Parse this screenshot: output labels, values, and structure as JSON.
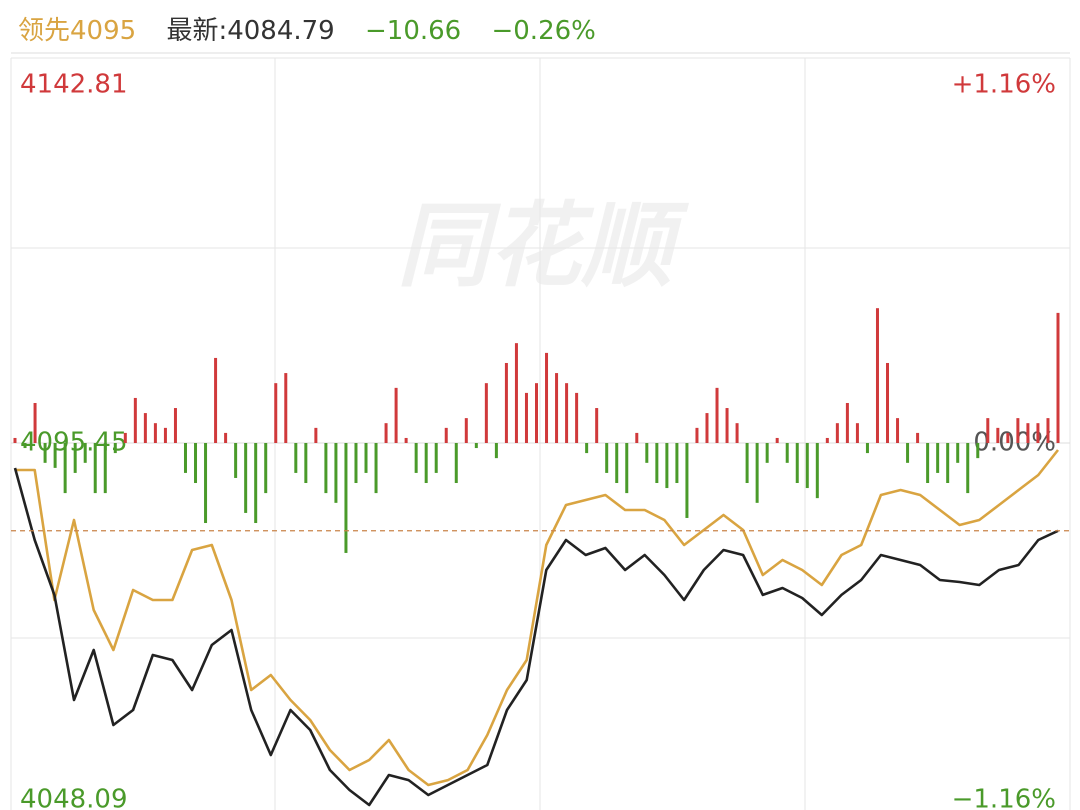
{
  "header": {
    "name": "领先4095",
    "latest_label": "最新:",
    "latest": 4084.79,
    "change": "−10.66",
    "change_pct": "−0.26%"
  },
  "watermark": "同花顺",
  "chart_data": {
    "type": "line",
    "ylim": [
      4048.09,
      4142.81
    ],
    "yticks": [
      4048.09,
      4095.45,
      4142.81
    ],
    "y2lim": [
      -1.16,
      1.16
    ],
    "y2ticks": [
      {
        "value": -1.16,
        "label": "−1.16%"
      },
      {
        "value": 0,
        "label": "0.00%"
      },
      {
        "value": 1.16,
        "label": "+1.16%"
      }
    ],
    "up_color": "#d0393b",
    "down_color": "#4a9a2a",
    "flat_color": "#8a8a8a",
    "series": [
      {
        "type": "bar",
        "axis": "y2",
        "values": [
          0.015,
          -0.015,
          0.119,
          -0.059,
          -0.074,
          -0.149,
          -0.089,
          -0.059,
          -0.149,
          -0.149,
          -0.03,
          0.03,
          0.134,
          0.089,
          0.059,
          0.045,
          0.104,
          -0.089,
          -0.119,
          -0.238,
          0.253,
          0.03,
          -0.104,
          -0.208,
          -0.238,
          -0.149,
          0.178,
          0.208,
          -0.089,
          -0.119,
          0.045,
          -0.149,
          -0.178,
          -0.327,
          -0.119,
          -0.089,
          -0.149,
          0.059,
          0.164,
          0.015,
          -0.089,
          -0.119,
          -0.089,
          0.045,
          -0.119,
          0.074,
          -0.015,
          0.178,
          -0.045,
          0.238,
          0.297,
          0.149,
          0.178,
          0.268,
          0.208,
          0.178,
          0.149,
          -0.03,
          0.104,
          -0.089,
          -0.119,
          -0.149,
          0.03,
          -0.059,
          -0.119,
          -0.134,
          -0.119,
          -0.223,
          0.045,
          0.089,
          0.164,
          0.104,
          0.059,
          -0.119,
          -0.178,
          -0.059,
          0.015,
          -0.059,
          -0.119,
          -0.134,
          -0.164,
          0.015,
          0.059,
          0.119,
          0.059,
          -0.03,
          0.401,
          0.238,
          0.074,
          -0.059,
          0.03,
          -0.119,
          -0.089,
          -0.119,
          -0.059,
          -0.149,
          -0.045,
          0.074,
          0.045,
          0.03,
          0.074,
          0.059,
          0.059,
          0.074,
          0.387
        ]
      },
      {
        "type": "line",
        "axis": "y",
        "color": "#d9a441",
        "values": [
          4092.17,
          4092.17,
          4076.38,
          4086.1,
          4075.17,
          4070.31,
          4077.6,
          4076.38,
          4076.38,
          4082.46,
          4083.06,
          4076.38,
          4065.45,
          4067.28,
          4064.24,
          4061.81,
          4058.17,
          4055.74,
          4056.95,
          4059.38,
          4055.74,
          4053.92,
          4054.52,
          4055.74,
          4059.99,
          4065.45,
          4069.1,
          4083.06,
          4087.92,
          4088.53,
          4089.14,
          4087.31,
          4087.31,
          4086.1,
          4083.06,
          4084.88,
          4086.71,
          4084.88,
          4079.42,
          4081.24,
          4080.03,
          4078.21,
          4081.85,
          4083.06,
          4089.14,
          4089.74,
          4089.14,
          4087.31,
          4085.49,
          4086.1,
          4087.92,
          4089.74,
          4091.56,
          4094.6
        ]
      },
      {
        "type": "line",
        "axis": "y",
        "color": "#222222",
        "values": [
          4092.41,
          4083.67,
          4077.0,
          4064.24,
          4070.31,
          4061.2,
          4063.03,
          4069.7,
          4069.1,
          4065.45,
          4070.92,
          4072.74,
          4063.03,
          4057.56,
          4063.03,
          4060.6,
          4055.74,
          4053.31,
          4051.49,
          4055.13,
          4054.52,
          4052.7,
          4053.92,
          4055.13,
          4056.35,
          4063.03,
          4066.67,
          4080.03,
          4083.67,
          4081.85,
          4082.7,
          4080.03,
          4081.85,
          4079.42,
          4076.38,
          4080.03,
          4082.46,
          4081.85,
          4077.0,
          4077.84,
          4076.63,
          4074.56,
          4077.0,
          4078.81,
          4081.85,
          4081.24,
          4080.63,
          4078.81,
          4078.57,
          4078.21,
          4080.03,
          4080.63,
          4083.67,
          4084.79
        ]
      }
    ]
  }
}
